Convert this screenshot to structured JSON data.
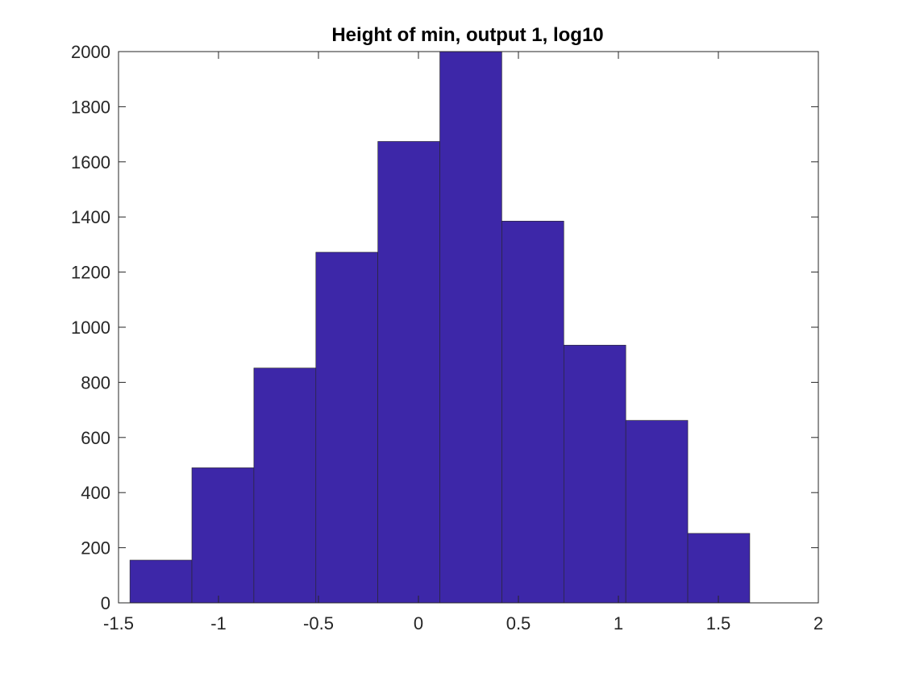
{
  "chart_data": {
    "type": "bar",
    "title": "Height of min, output 1, log10",
    "xlabel": "",
    "ylabel": "",
    "xlim": [
      -1.5,
      2
    ],
    "ylim": [
      0,
      2000
    ],
    "bin_edges": [
      -1.443,
      -1.133,
      -0.823,
      -0.513,
      -0.203,
      0.107,
      0.417,
      0.727,
      1.037,
      1.347,
      1.657
    ],
    "values": [
      155,
      490,
      852,
      1272,
      1674,
      2000,
      1385,
      935,
      662,
      252
    ],
    "xticks": [
      -1.5,
      -1,
      -0.5,
      0,
      0.5,
      1,
      1.5,
      2
    ],
    "xtick_labels": [
      "-1.5",
      "-1",
      "-0.5",
      "0",
      "0.5",
      "1",
      "1.5",
      "2"
    ],
    "yticks": [
      0,
      200,
      400,
      600,
      800,
      1000,
      1200,
      1400,
      1600,
      1800,
      2000
    ],
    "ytick_labels": [
      "0",
      "200",
      "400",
      "600",
      "800",
      "1000",
      "1200",
      "1400",
      "1600",
      "1800",
      "2000"
    ],
    "bar_color": "#3d27a8",
    "grid": false,
    "box": true
  }
}
